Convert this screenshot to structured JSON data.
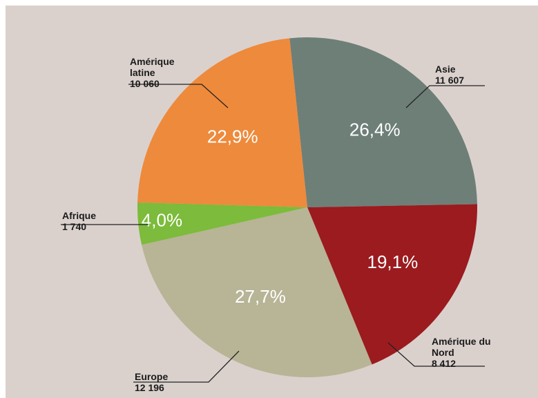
{
  "chart_data": {
    "type": "pie",
    "categories": [
      "Asie",
      "Amérique du Nord",
      "Europe",
      "Afrique",
      "Amérique latine"
    ],
    "values": [
      26.4,
      19.1,
      27.7,
      4.0,
      22.9
    ],
    "value_labels": [
      "26,4%",
      "19,1%",
      "27,7%",
      "4,0%",
      "22,9%"
    ],
    "amounts": [
      11607,
      8412,
      12196,
      1740,
      10060
    ],
    "amount_labels": [
      "11 607",
      "8 412",
      "12 196",
      "1 740",
      "10 060"
    ],
    "colors": [
      "#6e7f78",
      "#9b1b1f",
      "#b8b496",
      "#7cbb3b",
      "#ee8a3b"
    ]
  }
}
